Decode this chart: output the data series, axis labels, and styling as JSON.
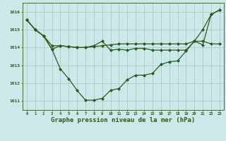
{
  "title": "Graphe pression niveau de la mer (hPa)",
  "hours": [
    0,
    1,
    2,
    3,
    4,
    5,
    6,
    7,
    8,
    9,
    10,
    11,
    12,
    13,
    14,
    15,
    16,
    17,
    18,
    19,
    20,
    21,
    22,
    23
  ],
  "line1": [
    1015.55,
    1015.0,
    1014.65,
    1014.1,
    1014.1,
    1014.05,
    1014.0,
    1014.0,
    1014.05,
    1014.1,
    1014.15,
    1014.2,
    1014.2,
    1014.2,
    1014.2,
    1014.2,
    1014.2,
    1014.2,
    1014.2,
    1014.2,
    1014.35,
    1014.35,
    1014.2,
    1014.2
  ],
  "line2": [
    1015.55,
    1015.0,
    1014.65,
    1013.9,
    1012.8,
    1012.25,
    1011.6,
    1011.05,
    1011.05,
    1011.15,
    1011.6,
    1011.7,
    1012.2,
    1012.45,
    1012.45,
    1012.55,
    1013.05,
    1013.2,
    1013.25,
    1013.8,
    1014.35,
    1015.0,
    1015.85,
    1016.1
  ],
  "line3": [
    1015.55,
    1015.0,
    1014.65,
    1013.9,
    1014.1,
    1014.05,
    1014.0,
    1014.0,
    1014.1,
    1014.35,
    1013.85,
    1013.9,
    1013.85,
    1013.95,
    1013.95,
    1013.85,
    1013.85,
    1013.85,
    1013.85,
    1013.85,
    1014.35,
    1014.15,
    1015.85,
    1016.1
  ],
  "line_color": "#2d5a1b",
  "bg_color": "#cce8e8",
  "grid_color": "#a0c8c8",
  "ylim": [
    1010.5,
    1016.5
  ],
  "yticks": [
    1011,
    1012,
    1013,
    1014,
    1015,
    1016
  ],
  "label_color": "#2d5a1b",
  "marker": "D",
  "markersize": 2.0,
  "linewidth": 0.9
}
